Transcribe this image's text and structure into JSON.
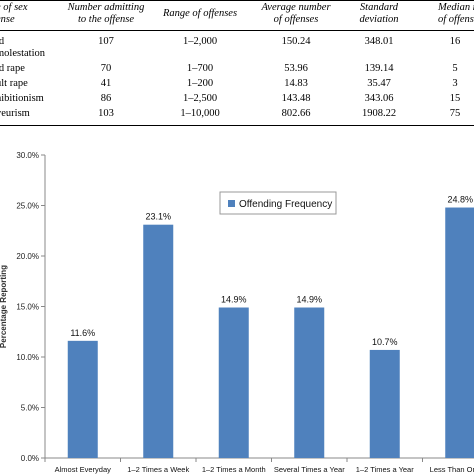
{
  "table": {
    "headers": [
      [
        "e of sex",
        "ense"
      ],
      [
        "Number admitting",
        "to the offense"
      ],
      [
        "Range of offenses",
        ""
      ],
      [
        "Average number",
        "of offenses"
      ],
      [
        "Standard",
        "deviation"
      ],
      [
        "Median nu",
        "of offense"
      ]
    ],
    "rows": [
      {
        "label": [
          "ld",
          "molestation"
        ],
        "admitting": "107",
        "range": "1–2,000",
        "average": "150.24",
        "sd": "348.01",
        "median": "16"
      },
      {
        "label": [
          "ld rape"
        ],
        "admitting": "70",
        "range": "1–700",
        "average": "53.96",
        "sd": "139.14",
        "median": "5"
      },
      {
        "label": [
          "ult rape"
        ],
        "admitting": "41",
        "range": "1–200",
        "average": "14.83",
        "sd": "35.47",
        "median": "3"
      },
      {
        "label": [
          "hibitionism"
        ],
        "admitting": "86",
        "range": "1–2,500",
        "average": "143.48",
        "sd": "343.06",
        "median": "15"
      },
      {
        "label": [
          "yeurism"
        ],
        "admitting": "103",
        "range": "1–10,000",
        "average": "802.66",
        "sd": "1908.22",
        "median": "75"
      }
    ]
  },
  "chart_data": {
    "type": "bar",
    "categories": [
      "Almost Everyday",
      "1–2 Times a Week",
      "1–2 Times a Month",
      "Several Times a Year",
      "1–2 Times a Year",
      "Less Than Once a"
    ],
    "series": [
      {
        "name": "Offending Frequency",
        "values": [
          11.6,
          23.1,
          14.9,
          14.9,
          10.7,
          24.8
        ]
      }
    ],
    "data_labels": [
      "11.6%",
      "23.1%",
      "14.9%",
      "14.9%",
      "10.7%",
      "24.8%"
    ],
    "ylim": [
      0,
      30
    ],
    "yticks": [
      "0.0%",
      "5.0%",
      "10.0%",
      "15.0%",
      "20.0%",
      "25.0%",
      "30.0%"
    ],
    "ylabel": "Percentage Reporting",
    "legend": "top-center",
    "grid": false,
    "bar_color": "#4f81bd"
  }
}
